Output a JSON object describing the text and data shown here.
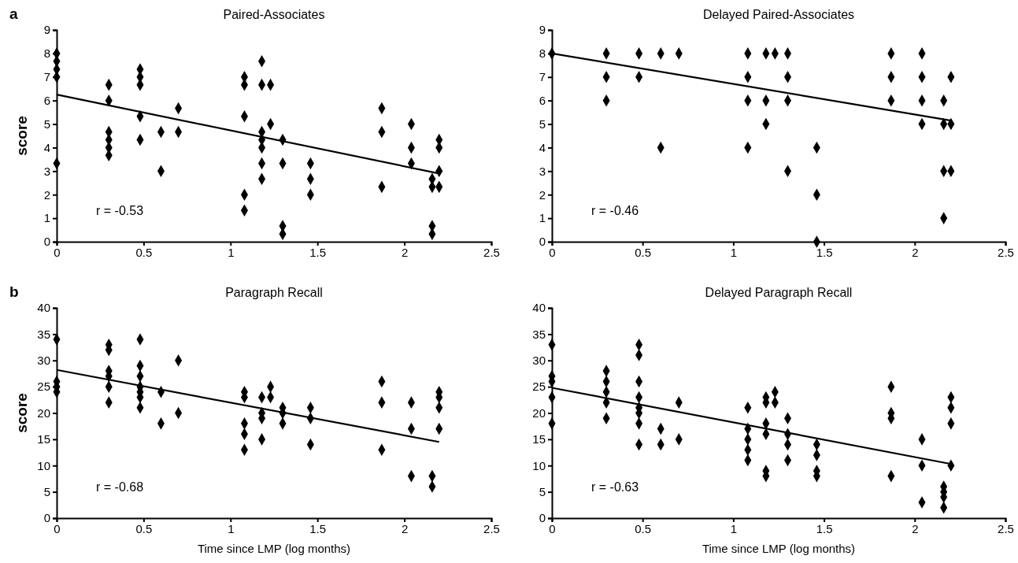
{
  "chart_data": [
    {
      "type": "scatter",
      "title": "Paired-Associates",
      "ylabel": "score",
      "annotations": [
        "a",
        "r = -0.53"
      ],
      "xlim": [
        0,
        2.5
      ],
      "xticks": [
        0,
        0.5,
        1,
        1.5,
        2,
        2.5
      ],
      "ylim": [
        0,
        9
      ],
      "yticks": [
        0,
        1,
        2,
        3,
        4,
        5,
        6,
        7,
        8,
        9
      ],
      "grid": false,
      "marker": "diamond",
      "series": [
        {
          "color": "#000000",
          "x": [
            0,
            0,
            0,
            0,
            0,
            0.3,
            0.3,
            0.3,
            0.3,
            0.3,
            0.3,
            0.48,
            0.48,
            0.48,
            0.48,
            0.48,
            0.6,
            0.6,
            0.7,
            0.7,
            1.08,
            1.08,
            1.08,
            1.08,
            1.08,
            1.18,
            1.18,
            1.18,
            1.18,
            1.18,
            1.18,
            1.18,
            1.23,
            1.23,
            1.3,
            1.3,
            1.3,
            1.3,
            1.46,
            1.46,
            1.46,
            1.87,
            1.87,
            1.87,
            2.04,
            2.04,
            2.04,
            2.16,
            2.16,
            2.16,
            2.16,
            2.2,
            2.2,
            2.2,
            2.2
          ],
          "values": [
            8,
            7.67,
            7.33,
            7,
            3.33,
            6.67,
            6,
            4.67,
            4.33,
            4,
            3.67,
            7.33,
            7,
            6.67,
            5.33,
            4.33,
            4.67,
            3,
            5.67,
            4.67,
            7,
            6.67,
            5.33,
            2,
            1.33,
            7.67,
            6.67,
            4.67,
            4.33,
            4,
            3.33,
            2.67,
            6.67,
            5,
            4.33,
            3.33,
            0.67,
            0.33,
            3.33,
            2.67,
            2,
            5.67,
            4.67,
            2.33,
            5,
            4,
            3.33,
            2.67,
            2.33,
            0.67,
            0.33,
            4.33,
            4,
            3,
            2.33
          ]
        },
        {
          "type": "line",
          "color": "#000000",
          "marker": "none",
          "line_style": "solid",
          "x": [
            0,
            2.2
          ],
          "values": [
            6.25,
            2.9
          ]
        }
      ]
    },
    {
      "type": "scatter",
      "title": "Delayed Paired-Associates",
      "annotations": [
        "r = -0.46"
      ],
      "xlim": [
        0,
        2.5
      ],
      "xticks": [
        0,
        0.5,
        1,
        1.5,
        2,
        2.5
      ],
      "ylim": [
        0,
        9
      ],
      "yticks": [
        0,
        1,
        2,
        3,
        4,
        5,
        6,
        7,
        8,
        9
      ],
      "grid": false,
      "marker": "diamond",
      "series": [
        {
          "color": "#000000",
          "x": [
            0,
            0.3,
            0.3,
            0.3,
            0.48,
            0.48,
            0.6,
            0.6,
            0.7,
            1.08,
            1.08,
            1.08,
            1.08,
            1.18,
            1.18,
            1.18,
            1.23,
            1.3,
            1.3,
            1.3,
            1.3,
            1.46,
            1.46,
            1.46,
            1.87,
            1.87,
            1.87,
            2.04,
            2.04,
            2.04,
            2.04,
            2.16,
            2.16,
            2.16,
            2.16,
            2.2,
            2.2,
            2.2
          ],
          "values": [
            8,
            8,
            7,
            6,
            8,
            7,
            8,
            4,
            8,
            8,
            7,
            6,
            4,
            8,
            6,
            5,
            8,
            8,
            7,
            6,
            3,
            4,
            2,
            0,
            8,
            7,
            6,
            8,
            7,
            6,
            5,
            6,
            5,
            3,
            1,
            7,
            5,
            3
          ]
        },
        {
          "type": "line",
          "color": "#000000",
          "marker": "none",
          "line_style": "solid",
          "x": [
            0,
            2.2
          ],
          "values": [
            8,
            5.15
          ]
        }
      ]
    },
    {
      "type": "scatter",
      "title": "Paragraph Recall",
      "xlabel": "Time since LMP (log months)",
      "ylabel": "score",
      "annotations": [
        "b",
        "r = -0.68"
      ],
      "xlim": [
        0,
        2.5
      ],
      "xticks": [
        0,
        0.5,
        1,
        1.5,
        2,
        2.5
      ],
      "ylim": [
        0,
        40
      ],
      "yticks": [
        0,
        5,
        10,
        15,
        20,
        25,
        30,
        35,
        40
      ],
      "grid": false,
      "marker": "diamond",
      "series": [
        {
          "color": "#000000",
          "x": [
            0,
            0,
            0,
            0,
            0.3,
            0.3,
            0.3,
            0.3,
            0.3,
            0.3,
            0.48,
            0.48,
            0.48,
            0.48,
            0.48,
            0.48,
            0.48,
            0.6,
            0.6,
            0.7,
            0.7,
            1.08,
            1.08,
            1.08,
            1.08,
            1.08,
            1.18,
            1.18,
            1.18,
            1.18,
            1.23,
            1.23,
            1.3,
            1.3,
            1.3,
            1.46,
            1.46,
            1.46,
            1.87,
            1.87,
            1.87,
            2.04,
            2.04,
            2.04,
            2.16,
            2.16,
            2.2,
            2.2,
            2.2,
            2.2
          ],
          "values": [
            34,
            26,
            25,
            24,
            33,
            32,
            28,
            27,
            25,
            22,
            34,
            29,
            27,
            25,
            24,
            23,
            21,
            24,
            18,
            30,
            20,
            24,
            23,
            18,
            16,
            13,
            23,
            20,
            19,
            15,
            25,
            23,
            21,
            20,
            18,
            21,
            19,
            14,
            26,
            22,
            13,
            22,
            17,
            8,
            8,
            6,
            24,
            23,
            21,
            17
          ]
        },
        {
          "type": "line",
          "color": "#000000",
          "marker": "none",
          "line_style": "solid",
          "x": [
            0,
            2.2
          ],
          "values": [
            28.2,
            14.5
          ]
        }
      ]
    },
    {
      "type": "scatter",
      "title": "Delayed Paragraph Recall",
      "xlabel": "Time since LMP (log months)",
      "annotations": [
        "r = -0.63"
      ],
      "xlim": [
        0,
        2.5
      ],
      "xticks": [
        0,
        0.5,
        1,
        1.5,
        2,
        2.5
      ],
      "ylim": [
        0,
        40
      ],
      "yticks": [
        0,
        5,
        10,
        15,
        20,
        25,
        30,
        35,
        40
      ],
      "grid": false,
      "marker": "diamond",
      "series": [
        {
          "color": "#000000",
          "x": [
            0,
            0,
            0,
            0,
            0,
            0.3,
            0.3,
            0.3,
            0.3,
            0.3,
            0.48,
            0.48,
            0.48,
            0.48,
            0.48,
            0.48,
            0.48,
            0.48,
            0.6,
            0.6,
            0.7,
            0.7,
            1.08,
            1.08,
            1.08,
            1.08,
            1.08,
            1.18,
            1.18,
            1.18,
            1.18,
            1.18,
            1.18,
            1.23,
            1.23,
            1.3,
            1.3,
            1.3,
            1.3,
            1.46,
            1.46,
            1.46,
            1.46,
            1.87,
            1.87,
            1.87,
            1.87,
            2.04,
            2.04,
            2.04,
            2.16,
            2.16,
            2.16,
            2.16,
            2.2,
            2.2,
            2.2,
            2.2
          ],
          "values": [
            33,
            27,
            26,
            23,
            18,
            28,
            26,
            24,
            22,
            19,
            33,
            31,
            26,
            23,
            21,
            20,
            18,
            14,
            17,
            14,
            22,
            15,
            21,
            17,
            15,
            13,
            11,
            23,
            22,
            18,
            16,
            9,
            8,
            24,
            22,
            19,
            16,
            14,
            11,
            14,
            12,
            9,
            8,
            25,
            20,
            19,
            8,
            15,
            10,
            3,
            6,
            5,
            4,
            2,
            23,
            21,
            18,
            10
          ]
        },
        {
          "type": "line",
          "color": "#000000",
          "marker": "none",
          "line_style": "solid",
          "x": [
            0,
            2.2
          ],
          "values": [
            24.8,
            10.3
          ]
        }
      ]
    }
  ]
}
